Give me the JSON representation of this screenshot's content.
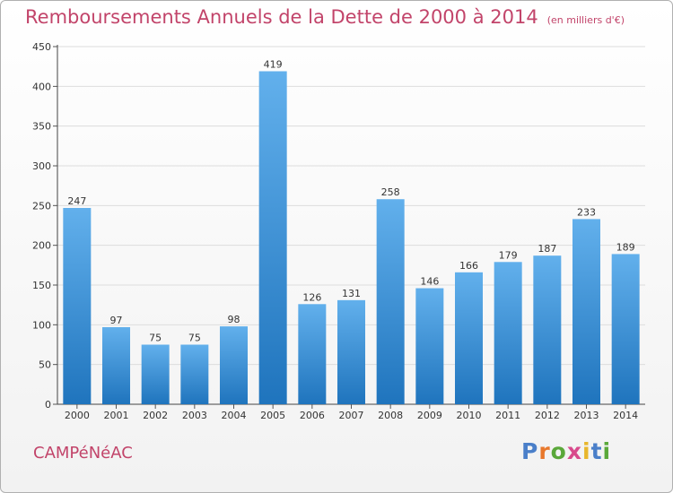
{
  "title": "Remboursements Annuels de la Dette de 2000 à 2014",
  "unit_note": "(en milliers d'€)",
  "city": "CAMPéNéAC",
  "brand": {
    "text": "Proxiti",
    "letter_colors": [
      "#4a7fc9",
      "#e8782c",
      "#5aa83a",
      "#d84a8c",
      "#e8b62c",
      "#4a7fc9",
      "#5aa83a"
    ]
  },
  "colors": {
    "bar_top": "#62b0ec",
    "bar_bottom": "#1f74bd",
    "title": "#c2446a",
    "grid": "#dddddd"
  },
  "chart_data": {
    "type": "bar",
    "categories": [
      "2000",
      "2001",
      "2002",
      "2003",
      "2004",
      "2005",
      "2006",
      "2007",
      "2008",
      "2009",
      "2010",
      "2011",
      "2012",
      "2013",
      "2014"
    ],
    "values": [
      247,
      97,
      75,
      75,
      98,
      419,
      126,
      131,
      258,
      146,
      166,
      179,
      187,
      233,
      189
    ],
    "ylim": [
      0,
      450
    ],
    "yticks": [
      0,
      50,
      100,
      150,
      200,
      250,
      300,
      350,
      400,
      450
    ],
    "grid": true
  }
}
